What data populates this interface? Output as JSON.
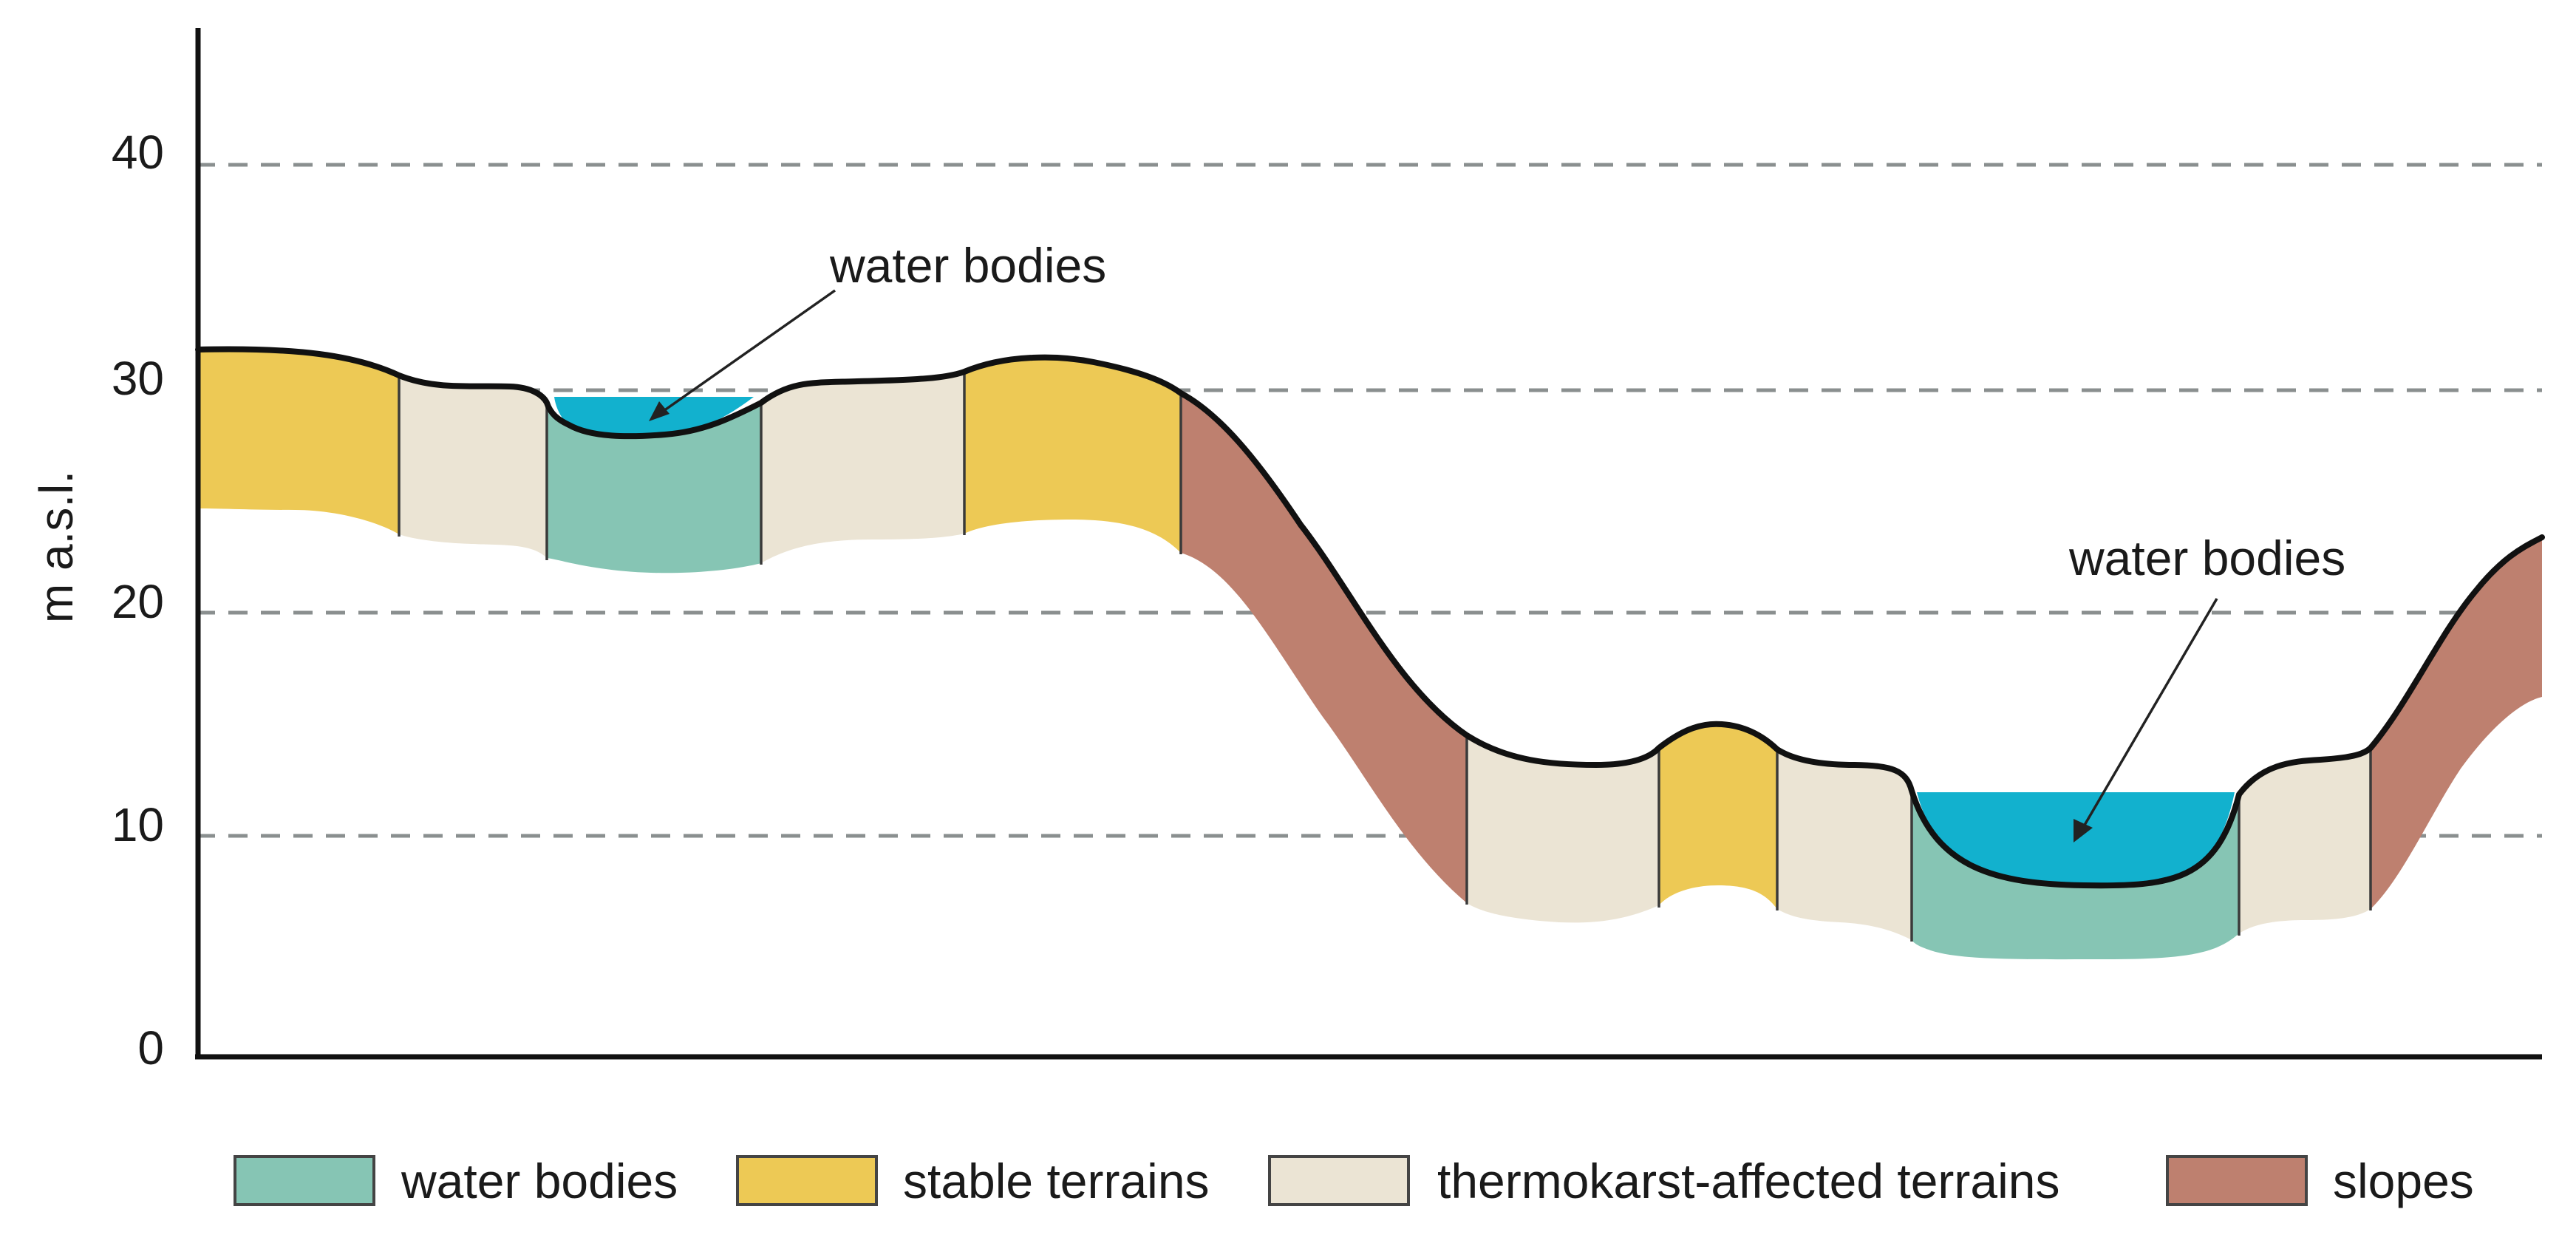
{
  "colors": {
    "water_bodies": "#86C5B4",
    "stable_terrains": "#EDC955",
    "thermokarst_affected_terrains": "#EBE4D4",
    "slopes": "#BE806F",
    "water_surface": "#12B1CE"
  },
  "axis": {
    "ylabel": "m a.s.l.",
    "ticks": [
      "0",
      "10",
      "20",
      "30",
      "40"
    ]
  },
  "annotations": {
    "upper": "water bodies",
    "lower": "water bodies"
  },
  "legend": [
    {
      "label": "water bodies",
      "color": "#86C5B4"
    },
    {
      "label": "stable terrains",
      "color": "#EDC955"
    },
    {
      "label": "thermokarst-affected terrains",
      "color": "#EBE4D4"
    },
    {
      "label": "slopes",
      "color": "#BE806F"
    }
  ]
}
